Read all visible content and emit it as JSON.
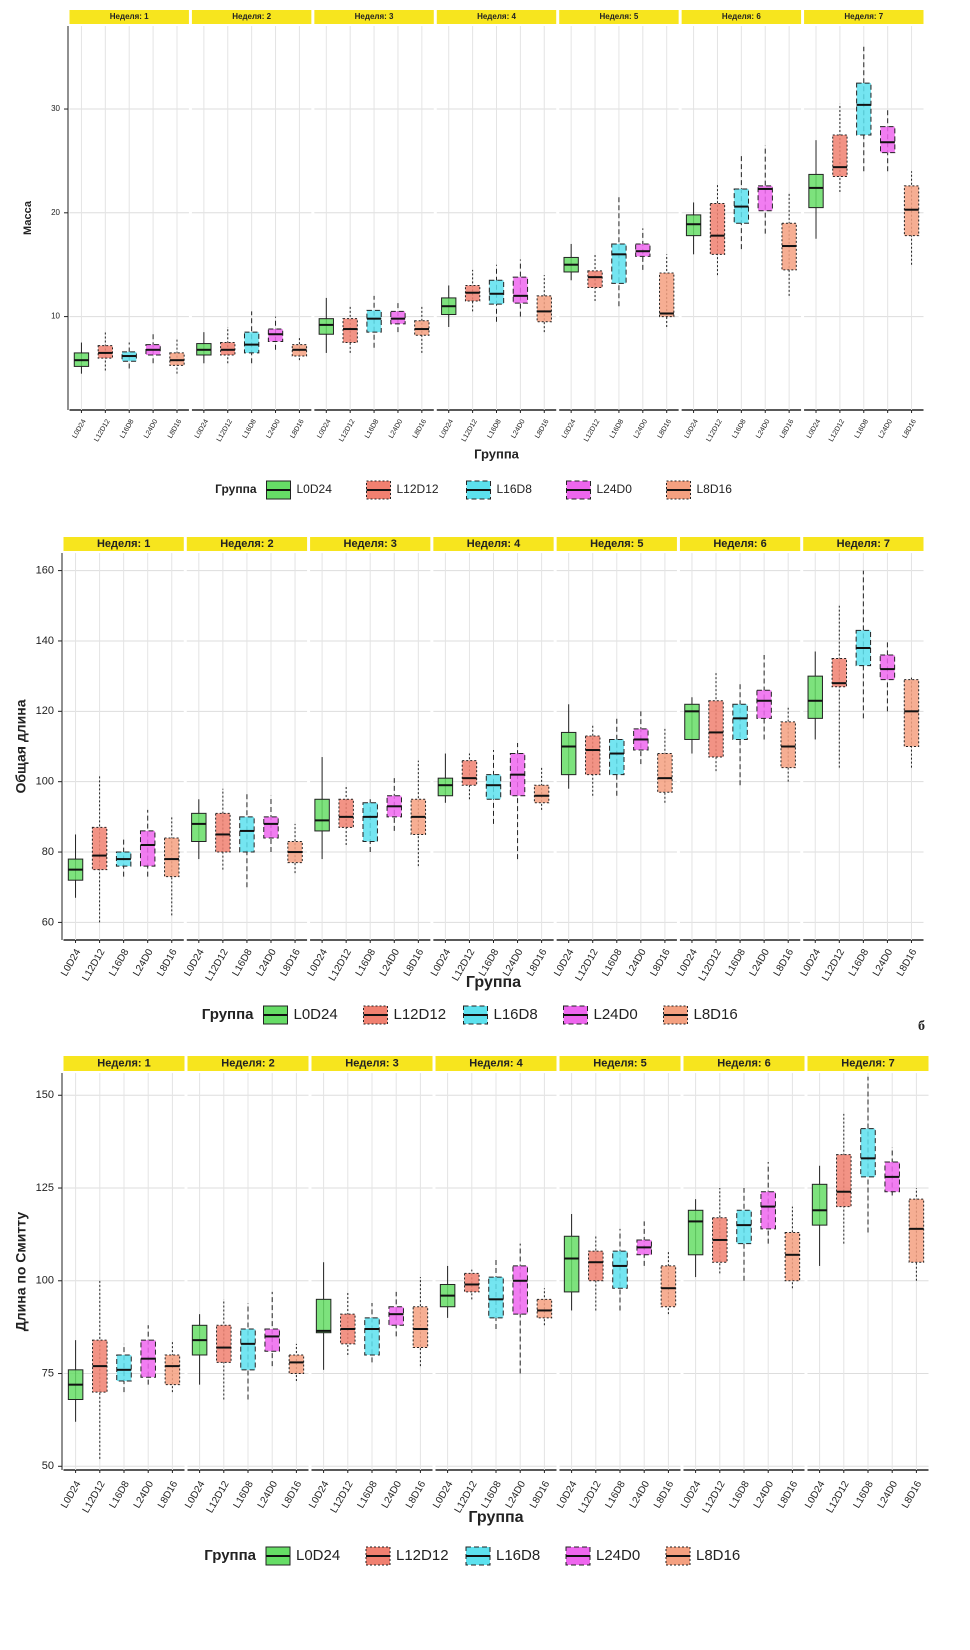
{
  "chart_data": [
    {
      "type": "box",
      "ylabel": "Масса",
      "xlabel": "Группа",
      "legend_title": "Группа",
      "categories": [
        "L0D24",
        "L12D12",
        "L16D8",
        "L24D0",
        "L8D16"
      ],
      "colors": [
        "#66dd66",
        "#f08070",
        "#5ce1ee",
        "#ee66ee",
        "#f4a080"
      ],
      "line_styles": [
        "solid",
        "dotted",
        "dashed",
        "dashed",
        "dotted"
      ],
      "ylim": [
        1,
        38
      ],
      "yticks": [
        10,
        20,
        30
      ],
      "grid": true,
      "facets": [
        {
          "label": "Неделя: 1",
          "boxes": [
            [
              4.5,
              5.2,
              5.8,
              6.5,
              7.5
            ],
            [
              4.8,
              6,
              6.5,
              7.2,
              8.5
            ],
            [
              5,
              5.7,
              6.2,
              6.6,
              7.5
            ],
            [
              5.5,
              6.3,
              6.8,
              7.3,
              8.3
            ],
            [
              4.5,
              5.3,
              5.8,
              6.5,
              7.8
            ]
          ]
        },
        {
          "label": "Неделя: 2",
          "boxes": [
            [
              5.5,
              6.3,
              6.8,
              7.4,
              8.5
            ],
            [
              5.5,
              6.3,
              6.8,
              7.5,
              9
            ],
            [
              5.5,
              6.5,
              7.3,
              8.5,
              10.5
            ],
            [
              6.8,
              7.6,
              8.3,
              8.8,
              10
            ],
            [
              5.8,
              6.2,
              6.8,
              7.3,
              8
            ]
          ]
        },
        {
          "label": "Неделя: 3",
          "boxes": [
            [
              6.5,
              8.3,
              9.2,
              9.8,
              11.8
            ],
            [
              6.5,
              7.5,
              8.8,
              9.8,
              11
            ],
            [
              7,
              8.5,
              9.8,
              10.6,
              12
            ],
            [
              8.5,
              9.3,
              9.8,
              10.5,
              11.5
            ],
            [
              6.5,
              8.2,
              8.8,
              9.6,
              11
            ]
          ]
        },
        {
          "label": "Неделя: 4",
          "boxes": [
            [
              9,
              10.2,
              11,
              11.8,
              13
            ],
            [
              10.5,
              11.5,
              12.3,
              13,
              14.5
            ],
            [
              9.5,
              11.2,
              12.2,
              13.5,
              15
            ],
            [
              10,
              11.3,
              12,
              13.8,
              15.5
            ],
            [
              8.5,
              9.5,
              10.5,
              12,
              14
            ]
          ]
        },
        {
          "label": "Неделя: 5",
          "boxes": [
            [
              13.5,
              14.3,
              15,
              15.7,
              17
            ],
            [
              11.5,
              12.8,
              13.8,
              14.4,
              16
            ],
            [
              11,
              13.2,
              16,
              17,
              21.5
            ],
            [
              14.5,
              15.8,
              16.3,
              17,
              18.5
            ],
            [
              9,
              10,
              10.3,
              14.2,
              16
            ]
          ]
        },
        {
          "label": "Неделя: 6",
          "boxes": [
            [
              16,
              17.8,
              18.9,
              19.8,
              21
            ],
            [
              14,
              16,
              17.8,
              20.9,
              22.8
            ],
            [
              16.5,
              19,
              20.6,
              22.3,
              25.5
            ],
            [
              18,
              20.2,
              22.3,
              22.6,
              26.5
            ],
            [
              12,
              14.5,
              16.8,
              19,
              22
            ]
          ]
        },
        {
          "label": "Неделя: 7",
          "boxes": [
            [
              17.5,
              20.5,
              22.4,
              23.7,
              27
            ],
            [
              22,
              23.5,
              24.4,
              27.5,
              30.5
            ],
            [
              24,
              27.5,
              30.4,
              32.5,
              36
            ],
            [
              24,
              25.8,
              26.8,
              28.3,
              30
            ],
            [
              15,
              17.8,
              20.3,
              22.6,
              24
            ]
          ]
        }
      ]
    },
    {
      "type": "box",
      "ylabel": "Общая длина",
      "xlabel": "Группа",
      "legend_title": "Группа",
      "panel_label": "б",
      "categories": [
        "L0D24",
        "L12D12",
        "L16D8",
        "L24D0",
        "L8D16"
      ],
      "colors": [
        "#66dd66",
        "#f08070",
        "#5ce1ee",
        "#ee66ee",
        "#f4a080"
      ],
      "line_styles": [
        "solid",
        "dotted",
        "dashed",
        "dashed",
        "dotted"
      ],
      "ylim": [
        55,
        165
      ],
      "yticks": [
        60,
        80,
        100,
        120,
        140,
        160
      ],
      "grid": true,
      "facets": [
        {
          "label": "Неделя: 1",
          "boxes": [
            [
              67,
              72,
              75,
              78,
              85
            ],
            [
              60,
              75,
              79,
              87,
              102
            ],
            [
              73,
              76,
              78,
              80,
              84
            ],
            [
              73,
              76,
              82,
              86,
              92
            ],
            [
              62,
              73,
              78,
              84,
              90
            ]
          ]
        },
        {
          "label": "Неделя: 2",
          "boxes": [
            [
              78,
              83,
              88,
              91,
              95
            ],
            [
              75,
              80,
              85,
              91,
              98
            ],
            [
              70,
              80,
              86,
              90,
              97
            ],
            [
              80,
              84,
              88,
              90,
              96
            ],
            [
              74,
              77,
              80,
              83,
              88
            ]
          ]
        },
        {
          "label": "Неделя: 3",
          "boxes": [
            [
              78,
              86,
              89,
              95,
              107
            ],
            [
              82,
              87,
              90,
              95,
              99
            ],
            [
              80,
              83,
              90,
              94,
              95
            ],
            [
              86,
              90,
              93,
              96,
              101
            ],
            [
              76,
              85,
              90,
              95,
              106
            ]
          ]
        },
        {
          "label": "Неделя: 4",
          "boxes": [
            [
              94,
              96,
              99,
              101,
              108
            ],
            [
              95,
              99,
              101,
              106,
              108
            ],
            [
              88,
              95,
              99,
              102,
              109
            ],
            [
              78,
              96,
              102,
              108,
              111
            ],
            [
              92,
              94,
              96,
              99,
              104
            ]
          ]
        },
        {
          "label": "Неделя: 5",
          "boxes": [
            [
              98,
              102,
              110,
              114,
              122
            ],
            [
              96,
              102,
              109,
              113,
              116
            ],
            [
              96,
              102,
              108,
              112,
              118
            ],
            [
              105,
              109,
              112,
              115,
              120
            ],
            [
              94,
              97,
              101,
              108,
              115
            ]
          ]
        },
        {
          "label": "Неделя: 6",
          "boxes": [
            [
              108,
              112,
              120,
              122,
              124
            ],
            [
              103,
              107,
              114,
              123,
              131
            ],
            [
              99,
              112,
              118,
              122,
              128
            ],
            [
              112,
              118,
              123,
              126,
              136
            ],
            [
              100,
              104,
              110,
              117,
              121
            ]
          ]
        },
        {
          "label": "Неделя: 7",
          "boxes": [
            [
              112,
              118,
              123,
              130,
              137
            ],
            [
              104,
              127,
              128,
              135,
              150
            ],
            [
              118,
              133,
              138,
              143,
              160
            ],
            [
              120,
              129,
              132,
              136,
              140
            ],
            [
              104,
              110,
              120,
              129,
              130
            ]
          ]
        }
      ]
    },
    {
      "type": "box",
      "ylabel": "Длина по Смитту",
      "xlabel": "Группа",
      "legend_title": "Группа",
      "categories": [
        "L0D24",
        "L12D12",
        "L16D8",
        "L24D0",
        "L8D16"
      ],
      "colors": [
        "#66dd66",
        "#f08070",
        "#5ce1ee",
        "#ee66ee",
        "#f4a080"
      ],
      "line_styles": [
        "solid",
        "dotted",
        "dashed",
        "dashed",
        "dotted"
      ],
      "ylim": [
        49,
        156
      ],
      "yticks": [
        50,
        75,
        100,
        125,
        150
      ],
      "grid": true,
      "facets": [
        {
          "label": "Неделя: 1",
          "boxes": [
            [
              62,
              68,
              72,
              76,
              84
            ],
            [
              52,
              70,
              77,
              84,
              100
            ],
            [
              70,
              73,
              76,
              80,
              83
            ],
            [
              72,
              74,
              79,
              84,
              88
            ],
            [
              70,
              72,
              77,
              80,
              84
            ]
          ]
        },
        {
          "label": "Неделя: 2",
          "boxes": [
            [
              72,
              80,
              84,
              88,
              91
            ],
            [
              68,
              78,
              82,
              88,
              95
            ],
            [
              68,
              76,
              83,
              87,
              94
            ],
            [
              77,
              81,
              85,
              87,
              97
            ],
            [
              73,
              75,
              78,
              80,
              83
            ]
          ]
        },
        {
          "label": "Неделя: 3",
          "boxes": [
            [
              76,
              86,
              86.5,
              95,
              105
            ],
            [
              80,
              83,
              87,
              91,
              97
            ],
            [
              78,
              80,
              87,
              90,
              94
            ],
            [
              85,
              88,
              91,
              93,
              97
            ],
            [
              77,
              82,
              87,
              93,
              101
            ]
          ]
        },
        {
          "label": "Неделя: 4",
          "boxes": [
            [
              90,
              93,
              96,
              99,
              104
            ],
            [
              95,
              97,
              99,
              102,
              103
            ],
            [
              87,
              90,
              95,
              101,
              106
            ],
            [
              75,
              91,
              100,
              104,
              110
            ],
            [
              88,
              90,
              92,
              95,
              98
            ]
          ]
        },
        {
          "label": "Неделя: 5",
          "boxes": [
            [
              92,
              97,
              106,
              112,
              118
            ],
            [
              92,
              100,
              105,
              108,
              112
            ],
            [
              92,
              98,
              104,
              108,
              114
            ],
            [
              104,
              107,
              109,
              111,
              116
            ],
            [
              91,
              93,
              98,
              104,
              108
            ]
          ]
        },
        {
          "label": "Неделя: 6",
          "boxes": [
            [
              101,
              107,
              116,
              119,
              122
            ],
            [
              102,
              105,
              111,
              117,
              125
            ],
            [
              100,
              110,
              115,
              119,
              125
            ],
            [
              110,
              114,
              120,
              124,
              132
            ],
            [
              98,
              100,
              107,
              113,
              120
            ]
          ]
        },
        {
          "label": "Неделя: 7",
          "boxes": [
            [
              104,
              115,
              119,
              126,
              131
            ],
            [
              110,
              120,
              124,
              134,
              145
            ],
            [
              113,
              128,
              133,
              141,
              155
            ],
            [
              123,
              124,
              128,
              132,
              136
            ],
            [
              100,
              105,
              114,
              122,
              125
            ]
          ]
        }
      ]
    }
  ]
}
